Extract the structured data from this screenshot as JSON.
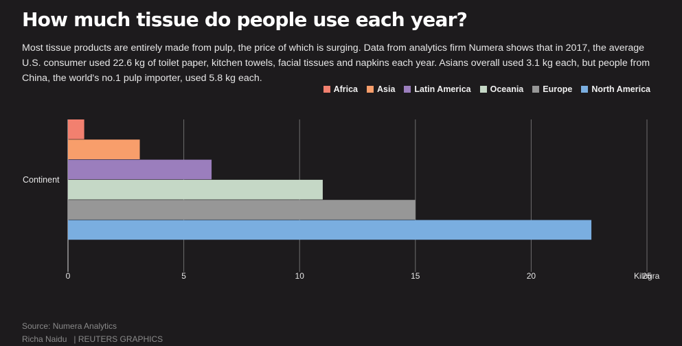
{
  "header": {
    "title": "How much tissue do people use each year?",
    "description": "Most tissue products are entirely made from pulp, the price of which is surging. Data from analytics firm Numera shows that in 2017, the average U.S. consumer used 22.6 kg of toilet paper, kitchen towels, facial tissues and napkins each year. Asians overall used 3.1 kg each, but people from China, the world's no.1 pulp importer, used 5.8 kg each."
  },
  "legend": [
    {
      "label": "Africa",
      "color": "#f2806f"
    },
    {
      "label": "Asia",
      "color": "#f89e6b"
    },
    {
      "label": "Latin America",
      "color": "#9b7ebd"
    },
    {
      "label": "Oceania",
      "color": "#c5d8c6"
    },
    {
      "label": "Europe",
      "color": "#979797"
    },
    {
      "label": "North America",
      "color": "#7aaee0"
    }
  ],
  "chart_data": {
    "type": "bar",
    "orientation": "horizontal",
    "categories": [
      "Continent"
    ],
    "series": [
      {
        "name": "Africa",
        "values": [
          0.7
        ],
        "color": "#f2806f"
      },
      {
        "name": "Asia",
        "values": [
          3.1
        ],
        "color": "#f89e6b"
      },
      {
        "name": "Latin America",
        "values": [
          6.2
        ],
        "color": "#9b7ebd"
      },
      {
        "name": "Oceania",
        "values": [
          11.0
        ],
        "color": "#c5d8c6"
      },
      {
        "name": "Europe",
        "values": [
          15.0
        ],
        "color": "#979797"
      },
      {
        "name": "North America",
        "values": [
          22.6
        ],
        "color": "#7aaee0"
      }
    ],
    "xlim": [
      0,
      25
    ],
    "xticks": [
      0,
      5,
      10,
      15,
      20,
      25
    ],
    "xlabel": "Kilogra",
    "grid": true,
    "legend_position": "top-right"
  },
  "footer": {
    "source": "Source: Numera Analytics",
    "author": "Richa Naidu",
    "org": "| REUTERS GRAPHICS"
  }
}
